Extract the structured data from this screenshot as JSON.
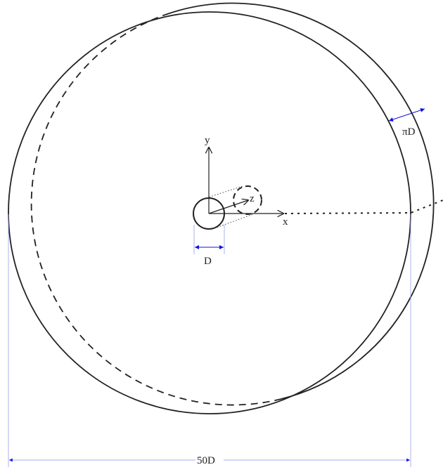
{
  "labels": {
    "y_axis": "y",
    "z_axis": "z",
    "x_axis": "x",
    "diameter": "D",
    "circumference": "πD",
    "span": "50D"
  }
}
